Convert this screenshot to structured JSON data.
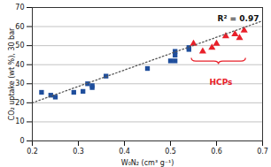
{
  "chart_data": {
    "type": "scatter",
    "x_label": "W₀N₂ (cm³ g⁻¹)",
    "y_label": "CO₂ uptake (wt %), 30 bar",
    "annotations": [
      "R² = 0.97",
      "HCPs"
    ],
    "xlim": [
      0.2,
      0.7
    ],
    "ylim": [
      0,
      70
    ],
    "xticks": [
      0.2,
      0.3,
      0.4,
      0.5,
      0.6,
      0.7
    ],
    "yticks": [
      0,
      10,
      20,
      30,
      40,
      50,
      60,
      70
    ],
    "grid": "y",
    "series": [
      {
        "color": "#1f4e9c",
        "marker": "square",
        "x": [
          0.22,
          0.24,
          0.25,
          0.29,
          0.31,
          0.32,
          0.33,
          0.33,
          0.36,
          0.45,
          0.5,
          0.51,
          0.51,
          0.51,
          0.54,
          0.54
        ],
        "values": [
          25.5,
          24,
          23,
          25.5,
          26,
          30,
          28,
          29,
          34,
          38,
          42,
          47,
          45,
          42,
          48,
          49
        ]
      },
      {
        "color": "#e8202a",
        "marker": "triangle",
        "x": [
          0.55,
          0.57,
          0.59,
          0.6,
          0.62,
          0.64,
          0.65,
          0.66
        ],
        "values": [
          51,
          47,
          49,
          51,
          55,
          56,
          54,
          58
        ]
      },
      {
        "type": "line",
        "color": "#555555",
        "line_style": "dotted",
        "x": [
          0.2,
          0.7
        ],
        "values": [
          20,
          63
        ]
      }
    ]
  }
}
